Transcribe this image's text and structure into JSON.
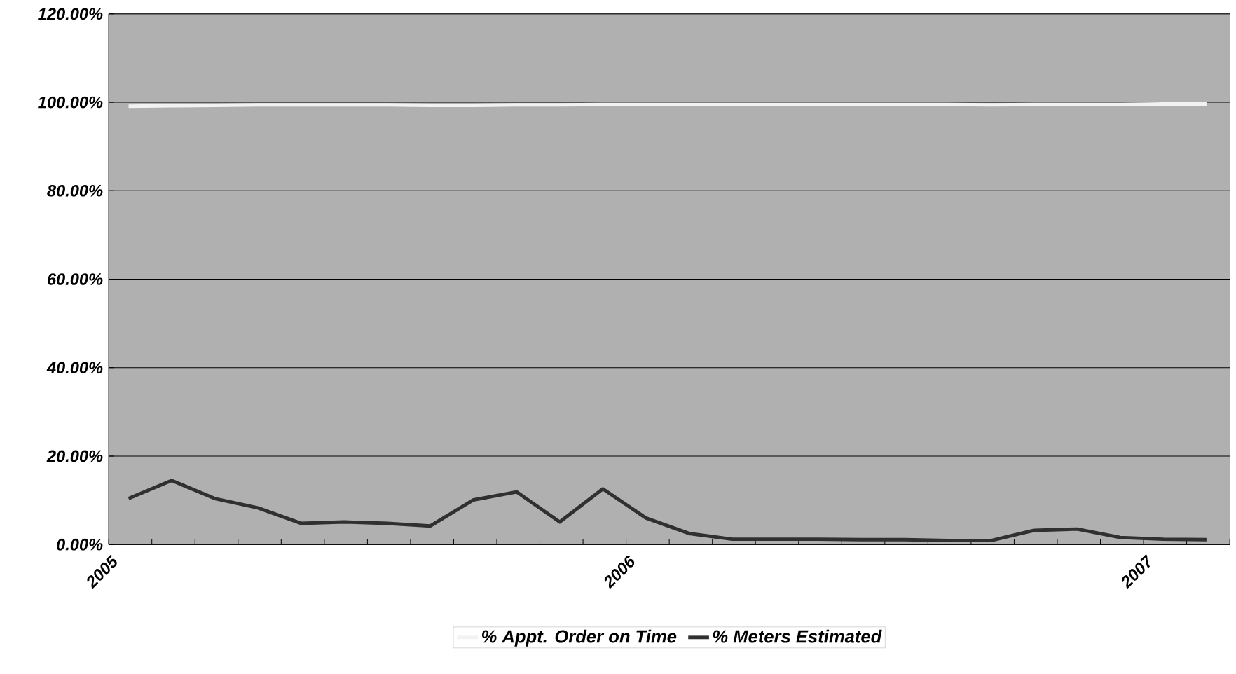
{
  "chart_data": {
    "type": "line",
    "x": [
      "2005-01-15",
      "2005-02-15",
      "2005-03-15",
      "2005-04-15",
      "2005-05-15",
      "2005-06-15",
      "2005-07-15",
      "2005-08-15",
      "2005-09-15",
      "2005-10-15",
      "2005-11-15",
      "2005-12-15",
      "2006-01-15",
      "2006-02-15",
      "2006-03-15",
      "2006-04-15",
      "2006-05-15",
      "2006-06-15",
      "2006-07-15",
      "2006-08-15",
      "2006-09-15",
      "2006-10-15",
      "2006-11-15",
      "2006-12-15",
      "2007-01-15",
      "2007-02-15"
    ],
    "series": [
      {
        "name": "% Appt. Order on Time",
        "color": "#f2f2f2",
        "values": [
          99.1,
          99.2,
          99.3,
          99.4,
          99.4,
          99.4,
          99.4,
          99.3,
          99.3,
          99.4,
          99.4,
          99.5,
          99.5,
          99.5,
          99.5,
          99.5,
          99.5,
          99.5,
          99.5,
          99.5,
          99.4,
          99.5,
          99.5,
          99.5,
          99.6,
          99.6
        ]
      },
      {
        "name": "% Meters Estimated",
        "color": "#303030",
        "values": [
          10.4,
          14.5,
          10.4,
          8.3,
          4.8,
          5.1,
          4.8,
          4.2,
          10.1,
          11.9,
          5.1,
          12.6,
          6.0,
          2.5,
          1.2,
          1.2,
          1.2,
          1.1,
          1.1,
          0.9,
          0.9,
          3.2,
          3.5,
          1.6,
          1.2,
          1.1
        ]
      }
    ],
    "xlim": [
      "2005-01-01",
      "2007-03-01"
    ],
    "xticks": [
      {
        "value": "2005-01-01",
        "label": "2005"
      },
      {
        "value": "2005-02-01",
        "label": null
      },
      {
        "value": "2005-03-01",
        "label": null
      },
      {
        "value": "2005-04-01",
        "label": null
      },
      {
        "value": "2005-05-01",
        "label": null
      },
      {
        "value": "2005-06-01",
        "label": null
      },
      {
        "value": "2005-07-01",
        "label": null
      },
      {
        "value": "2005-08-01",
        "label": null
      },
      {
        "value": "2005-09-01",
        "label": null
      },
      {
        "value": "2005-10-01",
        "label": null
      },
      {
        "value": "2005-11-01",
        "label": null
      },
      {
        "value": "2005-12-01",
        "label": null
      },
      {
        "value": "2006-01-01",
        "label": "2006"
      },
      {
        "value": "2006-02-01",
        "label": null
      },
      {
        "value": "2006-03-01",
        "label": null
      },
      {
        "value": "2006-04-01",
        "label": null
      },
      {
        "value": "2006-05-01",
        "label": null
      },
      {
        "value": "2006-06-01",
        "label": null
      },
      {
        "value": "2006-07-01",
        "label": null
      },
      {
        "value": "2006-08-01",
        "label": null
      },
      {
        "value": "2006-09-01",
        "label": null
      },
      {
        "value": "2006-10-01",
        "label": null
      },
      {
        "value": "2006-11-01",
        "label": null
      },
      {
        "value": "2006-12-01",
        "label": null
      },
      {
        "value": "2007-01-01",
        "label": "2007"
      },
      {
        "value": "2007-02-01",
        "label": null
      },
      {
        "value": "2007-03-01",
        "label": null
      }
    ],
    "ylim": [
      0,
      120
    ],
    "yticks": [
      {
        "value": 0,
        "label": "0.00%"
      },
      {
        "value": 20,
        "label": "20.00%"
      },
      {
        "value": 40,
        "label": "40.00%"
      },
      {
        "value": 60,
        "label": "60.00%"
      },
      {
        "value": 80,
        "label": "80.00%"
      },
      {
        "value": 100,
        "label": "100.00%"
      },
      {
        "value": 120,
        "label": "120.00%"
      }
    ],
    "grid": "y",
    "legend": "bottom",
    "marker": "none",
    "line_style": "solid"
  }
}
